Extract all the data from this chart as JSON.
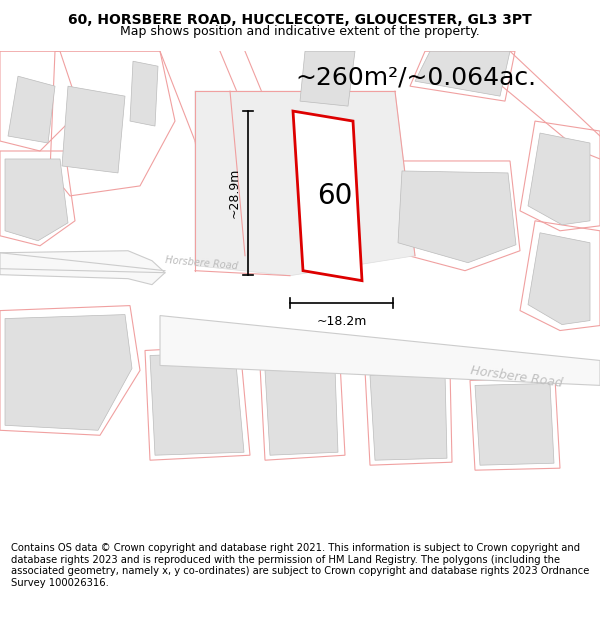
{
  "title_line1": "60, HORSBERE ROAD, HUCCLECOTE, GLOUCESTER, GL3 3PT",
  "title_line2": "Map shows position and indicative extent of the property.",
  "area_text": "~260m²/~0.064ac.",
  "label_number": "60",
  "dim_vertical": "~28.9m",
  "dim_horizontal": "~18.2m",
  "road_label1": "Horsbere Road",
  "road_label2": "Horsbere Road",
  "footer_text": "Contains OS data © Crown copyright and database right 2021. This information is subject to Crown copyright and database rights 2023 and is reproduced with the permission of HM Land Registry. The polygons (including the associated geometry, namely x, y co-ordinates) are subject to Crown copyright and database rights 2023 Ordnance Survey 100026316.",
  "bg_color": "#ffffff",
  "map_bg": "#ffffff",
  "plot_fill": "#ffffff",
  "plot_stroke": "#dd0000",
  "building_fill": "#e0e0e0",
  "building_edge": "#bbbbbb",
  "pink_line": "#f0a0a0",
  "pink_line2": "#e8b8b8",
  "dim_line_color": "#000000",
  "text_color": "#000000",
  "road_text_color": "#bbbbbb",
  "title_fontsize": 10,
  "subtitle_fontsize": 9,
  "area_fontsize": 18,
  "label_fontsize": 20,
  "dim_fontsize": 9,
  "footer_fontsize": 7.2
}
